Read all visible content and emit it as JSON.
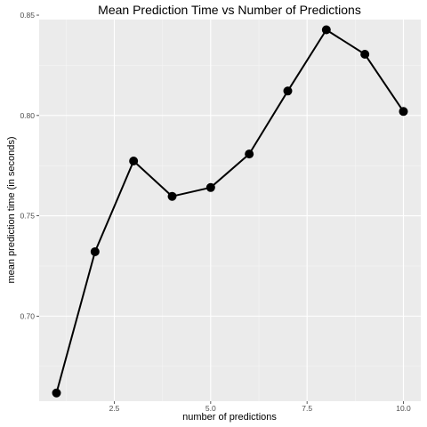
{
  "chart_data": {
    "type": "line",
    "title": "Mean Prediction Time vs Number of Predictions",
    "xlabel": "number of predictions",
    "ylabel": "mean prediction time (in seconds)",
    "x": [
      1,
      2,
      3,
      4,
      5,
      6,
      7,
      8,
      9,
      10
    ],
    "series": [
      {
        "values": [
          0.6617,
          0.7321,
          0.7773,
          0.7597,
          0.7641,
          0.7808,
          0.8122,
          0.8427,
          0.8305,
          0.802
        ]
      }
    ],
    "xlim": [
      0.55,
      10.45
    ],
    "ylim": [
      0.6576,
      0.8478
    ],
    "x_ticks": [
      2.5,
      5.0,
      7.5,
      10.0
    ],
    "x_tick_labels": [
      "2.5",
      "5.0",
      "7.5",
      "10.0"
    ],
    "y_ticks": [
      0.7,
      0.75,
      0.8,
      0.85
    ],
    "y_tick_labels": [
      "0.70",
      "0.75",
      "0.80",
      "0.85"
    ],
    "grid": true,
    "legend": "none",
    "colors": {
      "panel_background": "#ebebeb",
      "grid_major": "#ffffff",
      "grid_minor": "#f5f5f5",
      "line": "#000000",
      "points": "#000000",
      "tick_text": "#4d4d4d"
    }
  }
}
